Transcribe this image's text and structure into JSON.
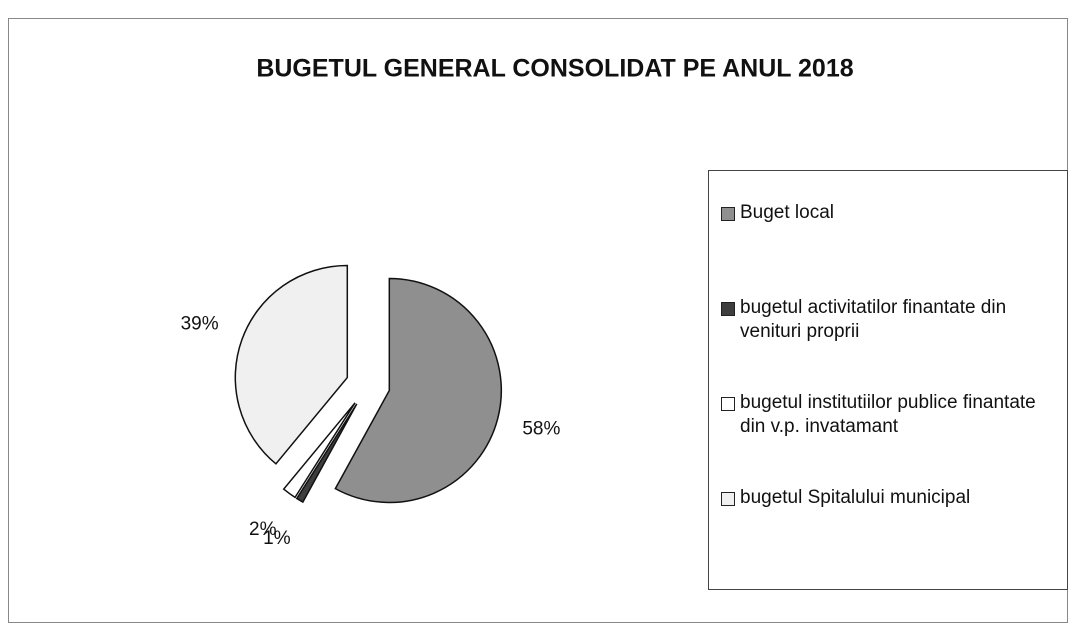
{
  "chart_data": {
    "type": "pie",
    "title": "BUGETUL GENERAL CONSOLIDAT PE ANUL 2018",
    "categories": [
      "Buget local",
      "bugetul activitatilor finantate din venituri proprii",
      "bugetul institutiilor publice finantate din v.p. invatamant",
      "bugetul Spitalului municipal"
    ],
    "values": [
      58,
      1,
      2,
      39
    ],
    "value_labels": [
      "58%",
      "1%",
      "2%",
      "39%"
    ],
    "colors": [
      "#8f8f8f",
      "#3d3d3d",
      "#ffffff",
      "#f0f0f0"
    ]
  }
}
